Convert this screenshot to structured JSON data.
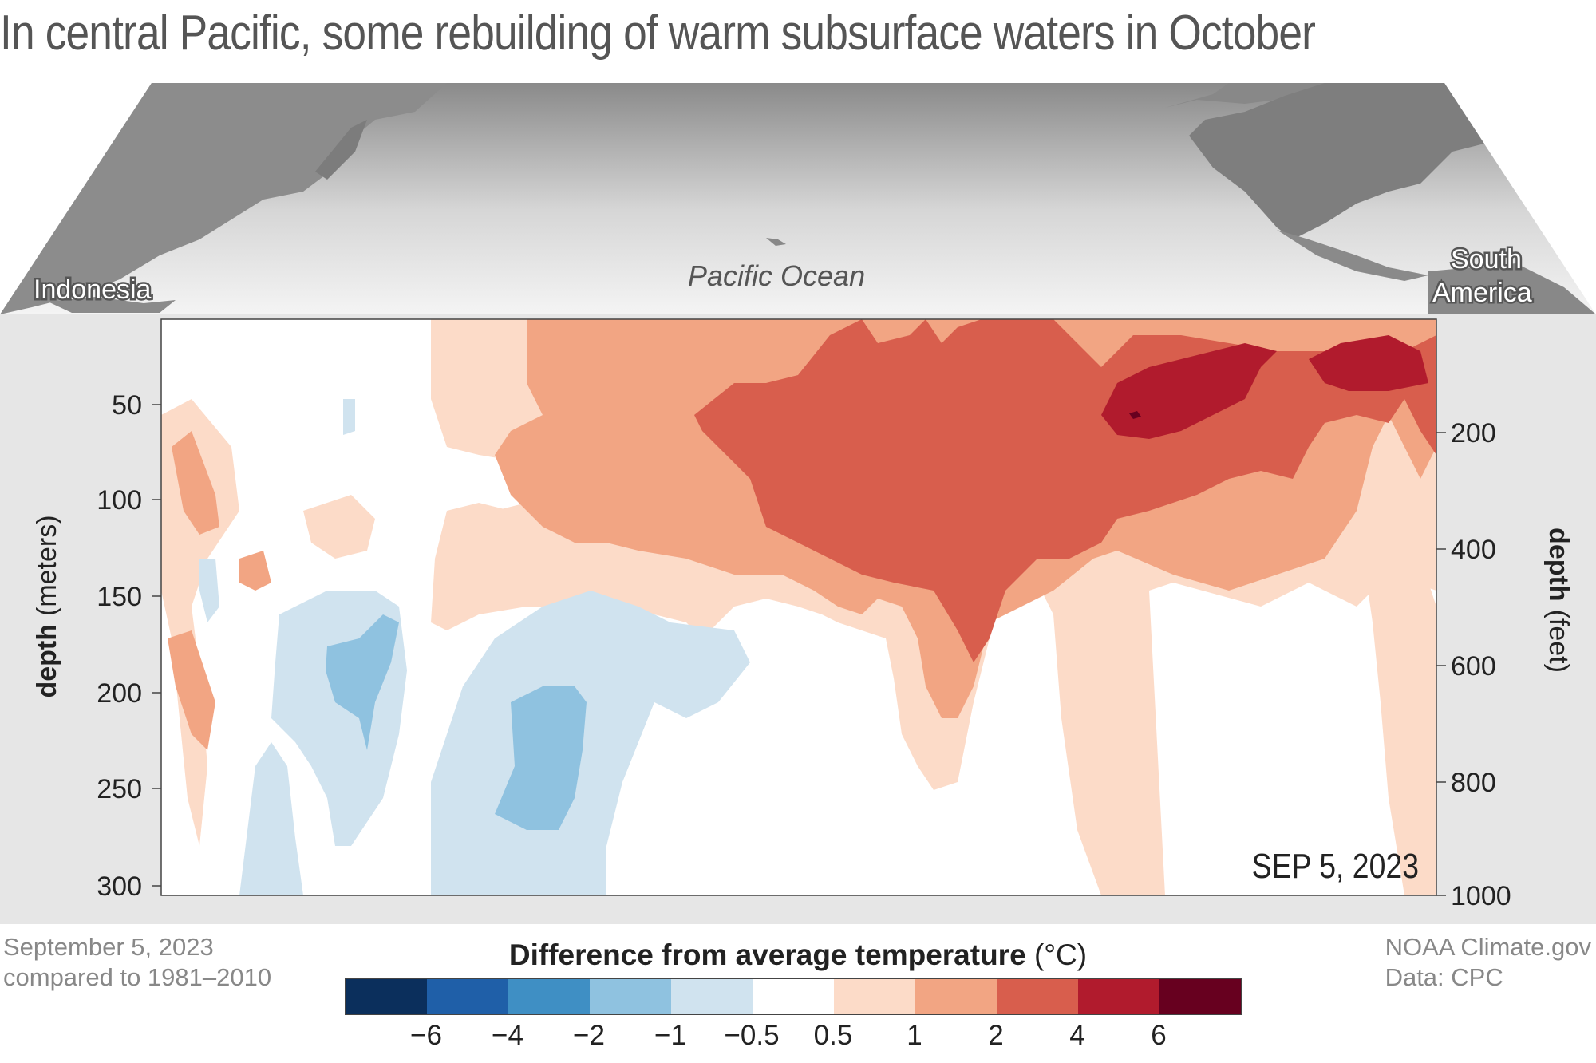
{
  "title": "In central Pacific, some rebuilding of warm subsurface waters in October",
  "map": {
    "labels": {
      "west": "Indonesia",
      "center": "Pacific Ocean",
      "east_line1": "South",
      "east_line2": "America"
    }
  },
  "plot": {
    "date_stamp": "SEP 5, 2023",
    "left_axis": {
      "title_bold": "depth",
      "title_unit": "(meters)",
      "ticks": [
        "50",
        "100",
        "150",
        "200",
        "250",
        "300"
      ],
      "tick_values": [
        50,
        100,
        150,
        200,
        250,
        300
      ]
    },
    "right_axis": {
      "title_bold": "depth",
      "title_unit": "(feet)",
      "ticks": [
        "200",
        "400",
        "600",
        "800",
        "1000"
      ],
      "tick_values": [
        200,
        400,
        600,
        800,
        1000
      ]
    }
  },
  "legend": {
    "title_bold": "Difference from average temperature",
    "title_unit": "(°C)",
    "colors": [
      "#0b2f5c",
      "#1f5fa8",
      "#3f8fc4",
      "#8fc2e0",
      "#d0e3ef",
      "#ffffff",
      "#fcdbc8",
      "#f2a583",
      "#d85e4d",
      "#b11b2d",
      "#67001f"
    ],
    "tick_labels": [
      "−6",
      "−4",
      "−2",
      "−1",
      "−0.5",
      "0.5",
      "1",
      "2",
      "4",
      "6"
    ]
  },
  "footer": {
    "left_line1": "September 5, 2023",
    "left_line2": "compared to 1981–2010",
    "right_line1": "NOAA Climate.gov",
    "right_line2": "Data: CPC"
  },
  "chart_data": {
    "type": "heatmap",
    "x_extent": [
      "Indonesia",
      "South America"
    ],
    "y_axis_left": {
      "label": "depth (meters)",
      "ticks": [
        50,
        100,
        150,
        200,
        250,
        300
      ]
    },
    "y_axis_right": {
      "label": "depth (feet)",
      "ticks": [
        200,
        400,
        600,
        800,
        1000
      ]
    },
    "color_levels": [
      -6,
      -4,
      -2,
      -1,
      -0.5,
      0.5,
      1,
      2,
      4,
      6
    ],
    "colorbar_label": "Difference from average temperature (°C)",
    "date": "SEP 5, 2023"
  }
}
